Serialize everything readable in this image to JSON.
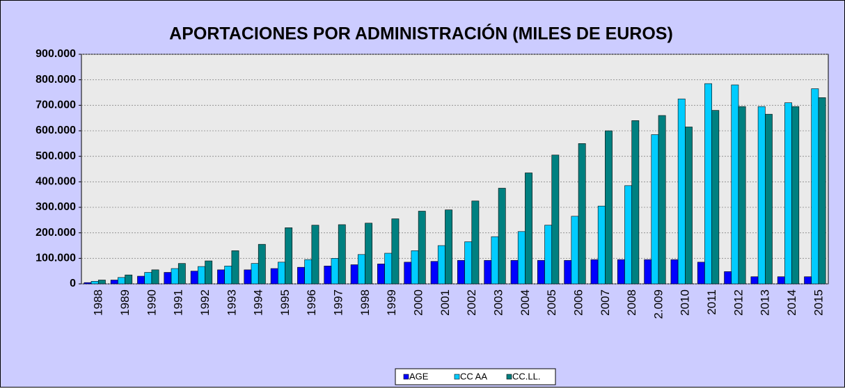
{
  "chart_data": {
    "type": "bar",
    "title": "APORTACIONES POR ADMINISTRACIÓN (MILES DE EUROS)",
    "categories": [
      "1988",
      "1989",
      "1990",
      "1991",
      "1992",
      "1993",
      "1994",
      "1995",
      "1996",
      "1997",
      "1998",
      "1999",
      "2000",
      "2001",
      "2002",
      "2003",
      "2004",
      "2005",
      "2006",
      "2007",
      "2008",
      "2.009",
      "2010",
      "2011",
      "2012",
      "2013",
      "2014",
      "2015"
    ],
    "series": [
      {
        "name": "AGE",
        "color": "#0000ff",
        "values": [
          5000,
          15000,
          30000,
          45000,
          50000,
          55000,
          55000,
          60000,
          65000,
          70000,
          75000,
          78000,
          85000,
          88000,
          92000,
          92000,
          92000,
          92000,
          92000,
          95000,
          95000,
          95000,
          95000,
          85000,
          48000,
          28000,
          28000,
          28000
        ]
      },
      {
        "name": "CC AA",
        "color": "#00ccff",
        "values": [
          10000,
          25000,
          45000,
          60000,
          68000,
          70000,
          80000,
          85000,
          95000,
          100000,
          115000,
          120000,
          130000,
          150000,
          165000,
          185000,
          205000,
          230000,
          265000,
          305000,
          385000,
          585000,
          725000,
          785000,
          780000,
          695000,
          710000,
          765000
        ]
      },
      {
        "name": "CC.LL.",
        "color": "#008080",
        "values": [
          15000,
          35000,
          55000,
          80000,
          90000,
          130000,
          155000,
          220000,
          230000,
          232000,
          238000,
          255000,
          285000,
          290000,
          325000,
          375000,
          435000,
          505000,
          550000,
          600000,
          640000,
          660000,
          615000,
          680000,
          695000,
          665000,
          695000,
          730000
        ]
      }
    ],
    "ylim": [
      0,
      900000
    ],
    "yticks": [
      0,
      {
        "value": 100000,
        "label": "100.000"
      },
      {
        "value": 200000,
        "label": "200.000"
      },
      {
        "value": 300000,
        "label": "300.000"
      },
      {
        "value": 400000,
        "label": "400.000"
      },
      {
        "value": 500000,
        "label": "500.000"
      },
      {
        "value": 600000,
        "label": "600.000"
      },
      {
        "value": 700000,
        "label": "700.000"
      },
      {
        "value": 800000,
        "label": "800.000"
      },
      {
        "value": 900000,
        "label": "900.000"
      }
    ],
    "grid": true,
    "legend": "bottom"
  }
}
